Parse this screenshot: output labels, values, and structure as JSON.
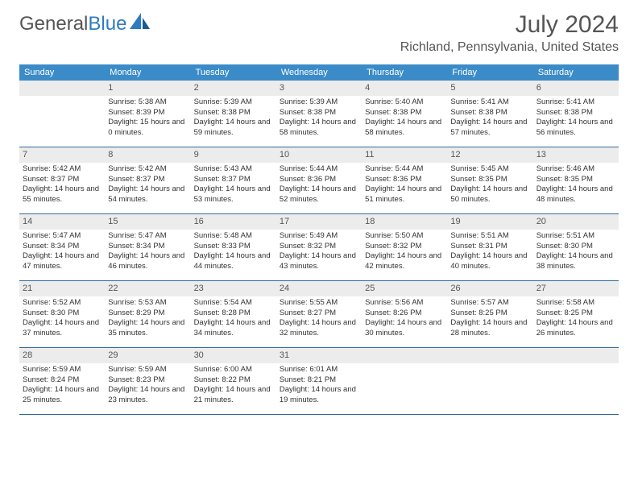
{
  "brand": {
    "part1": "General",
    "part2": "Blue"
  },
  "title": "July 2024",
  "location": "Richland, Pennsylvania, United States",
  "colors": {
    "header_bg": "#3b8bc8",
    "header_text": "#ffffff",
    "border": "#2f6a9e",
    "shade": "#ececec",
    "text": "#333333",
    "title_text": "#555555"
  },
  "day_names": [
    "Sunday",
    "Monday",
    "Tuesday",
    "Wednesday",
    "Thursday",
    "Friday",
    "Saturday"
  ],
  "weeks": [
    [
      {
        "n": "",
        "lines": []
      },
      {
        "n": "1",
        "lines": [
          "Sunrise: 5:38 AM",
          "Sunset: 8:39 PM",
          "Daylight: 15 hours and 0 minutes."
        ]
      },
      {
        "n": "2",
        "lines": [
          "Sunrise: 5:39 AM",
          "Sunset: 8:38 PM",
          "Daylight: 14 hours and 59 minutes."
        ]
      },
      {
        "n": "3",
        "lines": [
          "Sunrise: 5:39 AM",
          "Sunset: 8:38 PM",
          "Daylight: 14 hours and 58 minutes."
        ]
      },
      {
        "n": "4",
        "lines": [
          "Sunrise: 5:40 AM",
          "Sunset: 8:38 PM",
          "Daylight: 14 hours and 58 minutes."
        ]
      },
      {
        "n": "5",
        "lines": [
          "Sunrise: 5:41 AM",
          "Sunset: 8:38 PM",
          "Daylight: 14 hours and 57 minutes."
        ]
      },
      {
        "n": "6",
        "lines": [
          "Sunrise: 5:41 AM",
          "Sunset: 8:38 PM",
          "Daylight: 14 hours and 56 minutes."
        ]
      }
    ],
    [
      {
        "n": "7",
        "lines": [
          "Sunrise: 5:42 AM",
          "Sunset: 8:37 PM",
          "Daylight: 14 hours and 55 minutes."
        ]
      },
      {
        "n": "8",
        "lines": [
          "Sunrise: 5:42 AM",
          "Sunset: 8:37 PM",
          "Daylight: 14 hours and 54 minutes."
        ]
      },
      {
        "n": "9",
        "lines": [
          "Sunrise: 5:43 AM",
          "Sunset: 8:37 PM",
          "Daylight: 14 hours and 53 minutes."
        ]
      },
      {
        "n": "10",
        "lines": [
          "Sunrise: 5:44 AM",
          "Sunset: 8:36 PM",
          "Daylight: 14 hours and 52 minutes."
        ]
      },
      {
        "n": "11",
        "lines": [
          "Sunrise: 5:44 AM",
          "Sunset: 8:36 PM",
          "Daylight: 14 hours and 51 minutes."
        ]
      },
      {
        "n": "12",
        "lines": [
          "Sunrise: 5:45 AM",
          "Sunset: 8:35 PM",
          "Daylight: 14 hours and 50 minutes."
        ]
      },
      {
        "n": "13",
        "lines": [
          "Sunrise: 5:46 AM",
          "Sunset: 8:35 PM",
          "Daylight: 14 hours and 48 minutes."
        ]
      }
    ],
    [
      {
        "n": "14",
        "lines": [
          "Sunrise: 5:47 AM",
          "Sunset: 8:34 PM",
          "Daylight: 14 hours and 47 minutes."
        ]
      },
      {
        "n": "15",
        "lines": [
          "Sunrise: 5:47 AM",
          "Sunset: 8:34 PM",
          "Daylight: 14 hours and 46 minutes."
        ]
      },
      {
        "n": "16",
        "lines": [
          "Sunrise: 5:48 AM",
          "Sunset: 8:33 PM",
          "Daylight: 14 hours and 44 minutes."
        ]
      },
      {
        "n": "17",
        "lines": [
          "Sunrise: 5:49 AM",
          "Sunset: 8:32 PM",
          "Daylight: 14 hours and 43 minutes."
        ]
      },
      {
        "n": "18",
        "lines": [
          "Sunrise: 5:50 AM",
          "Sunset: 8:32 PM",
          "Daylight: 14 hours and 42 minutes."
        ]
      },
      {
        "n": "19",
        "lines": [
          "Sunrise: 5:51 AM",
          "Sunset: 8:31 PM",
          "Daylight: 14 hours and 40 minutes."
        ]
      },
      {
        "n": "20",
        "lines": [
          "Sunrise: 5:51 AM",
          "Sunset: 8:30 PM",
          "Daylight: 14 hours and 38 minutes."
        ]
      }
    ],
    [
      {
        "n": "21",
        "lines": [
          "Sunrise: 5:52 AM",
          "Sunset: 8:30 PM",
          "Daylight: 14 hours and 37 minutes."
        ]
      },
      {
        "n": "22",
        "lines": [
          "Sunrise: 5:53 AM",
          "Sunset: 8:29 PM",
          "Daylight: 14 hours and 35 minutes."
        ]
      },
      {
        "n": "23",
        "lines": [
          "Sunrise: 5:54 AM",
          "Sunset: 8:28 PM",
          "Daylight: 14 hours and 34 minutes."
        ]
      },
      {
        "n": "24",
        "lines": [
          "Sunrise: 5:55 AM",
          "Sunset: 8:27 PM",
          "Daylight: 14 hours and 32 minutes."
        ]
      },
      {
        "n": "25",
        "lines": [
          "Sunrise: 5:56 AM",
          "Sunset: 8:26 PM",
          "Daylight: 14 hours and 30 minutes."
        ]
      },
      {
        "n": "26",
        "lines": [
          "Sunrise: 5:57 AM",
          "Sunset: 8:25 PM",
          "Daylight: 14 hours and 28 minutes."
        ]
      },
      {
        "n": "27",
        "lines": [
          "Sunrise: 5:58 AM",
          "Sunset: 8:25 PM",
          "Daylight: 14 hours and 26 minutes."
        ]
      }
    ],
    [
      {
        "n": "28",
        "lines": [
          "Sunrise: 5:59 AM",
          "Sunset: 8:24 PM",
          "Daylight: 14 hours and 25 minutes."
        ]
      },
      {
        "n": "29",
        "lines": [
          "Sunrise: 5:59 AM",
          "Sunset: 8:23 PM",
          "Daylight: 14 hours and 23 minutes."
        ]
      },
      {
        "n": "30",
        "lines": [
          "Sunrise: 6:00 AM",
          "Sunset: 8:22 PM",
          "Daylight: 14 hours and 21 minutes."
        ]
      },
      {
        "n": "31",
        "lines": [
          "Sunrise: 6:01 AM",
          "Sunset: 8:21 PM",
          "Daylight: 14 hours and 19 minutes."
        ]
      },
      {
        "n": "",
        "lines": []
      },
      {
        "n": "",
        "lines": []
      },
      {
        "n": "",
        "lines": []
      }
    ]
  ]
}
